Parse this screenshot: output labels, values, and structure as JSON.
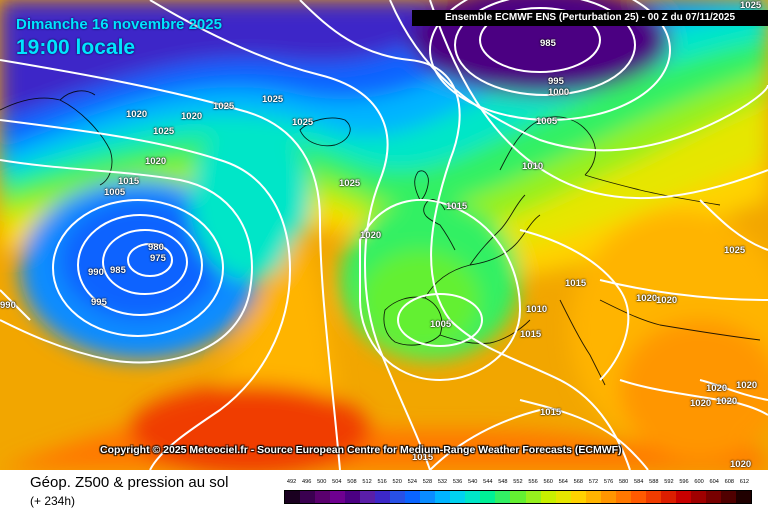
{
  "header": {
    "date_line": "Dimanche 16 novembre 2025",
    "time_line": "19:00 locale",
    "run_info": "Ensemble ECMWF ENS  (Perturbation 25)  -  00 Z du 07/11/2025"
  },
  "copyright": "Copyright © 2025 Meteociel.fr - Source European Centre for Medium-Range Weather Forecasts (ECMWF)",
  "footer": {
    "title": "Géop. Z500 & pression au sol",
    "subtitle": "(+ 234h)"
  },
  "scale": {
    "labels": [
      "492",
      "496",
      "500",
      "504",
      "508",
      "512",
      "516",
      "520",
      "524",
      "528",
      "532",
      "536",
      "540",
      "544",
      "548",
      "552",
      "556",
      "560",
      "564",
      "568",
      "572",
      "576",
      "580",
      "584",
      "588",
      "592",
      "596",
      "600",
      "604",
      "608",
      "612"
    ],
    "colors": [
      "#1a0020",
      "#3a0050",
      "#5a006e",
      "#6e0090",
      "#4b0082",
      "#5a1ea8",
      "#3c28c8",
      "#2850e6",
      "#0a64ff",
      "#0a8cff",
      "#00b4ff",
      "#00d2f0",
      "#00e6c8",
      "#00f096",
      "#32f064",
      "#64f032",
      "#96f01e",
      "#c8f000",
      "#e6e600",
      "#ffd200",
      "#ffb400",
      "#ff9600",
      "#ff7800",
      "#ff5a00",
      "#f03c00",
      "#dc1e00",
      "#c80000",
      "#a00000",
      "#780000",
      "#500000",
      "#200000"
    ]
  },
  "isobar_labels": [
    {
      "text": "985"
    },
    {
      "text": "995"
    },
    {
      "text": "1000"
    },
    {
      "text": "1005"
    },
    {
      "text": "1010"
    },
    {
      "text": "1020"
    },
    {
      "text": "1020"
    },
    {
      "text": "1025"
    },
    {
      "text": "1025"
    },
    {
      "text": "1025"
    },
    {
      "text": "1025"
    },
    {
      "text": "1020"
    },
    {
      "text": "1015"
    },
    {
      "text": "1005"
    },
    {
      "text": "1025"
    },
    {
      "text": "1020"
    },
    {
      "text": "1015"
    },
    {
      "text": "980"
    },
    {
      "text": "975"
    },
    {
      "text": "990"
    },
    {
      "text": "985"
    },
    {
      "text": "995"
    },
    {
      "text": "990"
    },
    {
      "text": "1015"
    },
    {
      "text": "1005"
    },
    {
      "text": "1010"
    },
    {
      "text": "1015"
    },
    {
      "text": "1015"
    },
    {
      "text": "1020"
    },
    {
      "text": "1020"
    },
    {
      "text": "1025"
    },
    {
      "text": "1020"
    },
    {
      "text": "1020"
    },
    {
      "text": "1020"
    },
    {
      "text": "1015"
    },
    {
      "text": "1020"
    },
    {
      "text": "1020"
    },
    {
      "text": "1025"
    }
  ]
}
